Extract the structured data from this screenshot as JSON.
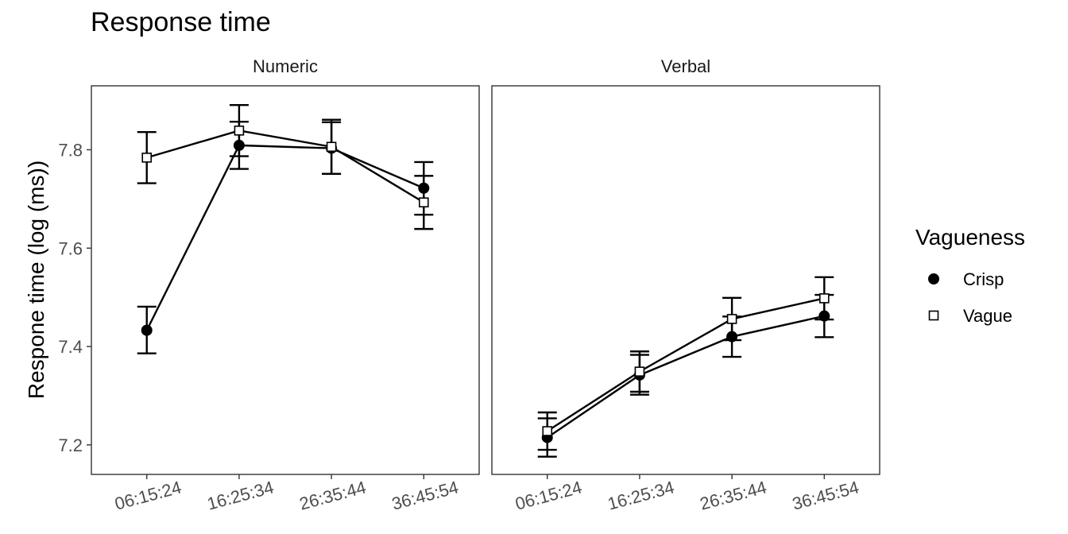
{
  "chart_data": {
    "type": "line",
    "title": "Response time",
    "ylabel": "Respone time (log (ms))",
    "xlabel": "",
    "ylim": [
      7.14,
      7.93
    ],
    "yticks": [
      7.2,
      7.4,
      7.6,
      7.8
    ],
    "categories": [
      "06:15:24",
      "16:25:34",
      "26:35:44",
      "36:45:54"
    ],
    "legend": {
      "title": "Vagueness",
      "position": "right"
    },
    "grid": false,
    "panels": [
      {
        "name": "Numeric",
        "series": [
          {
            "name": "Crisp",
            "marker": "filled-circle",
            "values": [
              7.433,
              7.809,
              7.803,
              7.722
            ],
            "err_low": [
              7.386,
              7.761,
              7.751,
              7.668
            ],
            "err_high": [
              7.481,
              7.857,
              7.856,
              7.775
            ]
          },
          {
            "name": "Vague",
            "marker": "open-square",
            "values": [
              7.784,
              7.839,
              7.806,
              7.693
            ],
            "err_low": [
              7.732,
              7.787,
              7.751,
              7.639
            ],
            "err_high": [
              7.836,
              7.891,
              7.861,
              7.747
            ]
          }
        ]
      },
      {
        "name": "Verbal",
        "series": [
          {
            "name": "Crisp",
            "marker": "filled-circle",
            "values": [
              7.215,
              7.342,
              7.42,
              7.462
            ],
            "err_low": [
              7.176,
              7.302,
              7.379,
              7.419
            ],
            "err_high": [
              7.254,
              7.383,
              7.461,
              7.505
            ]
          },
          {
            "name": "Vague",
            "marker": "open-square",
            "values": [
              7.228,
              7.349,
              7.456,
              7.498
            ],
            "err_low": [
              7.19,
              7.308,
              7.413,
              7.455
            ],
            "err_high": [
              7.266,
              7.39,
              7.499,
              7.541
            ]
          }
        ]
      }
    ]
  }
}
